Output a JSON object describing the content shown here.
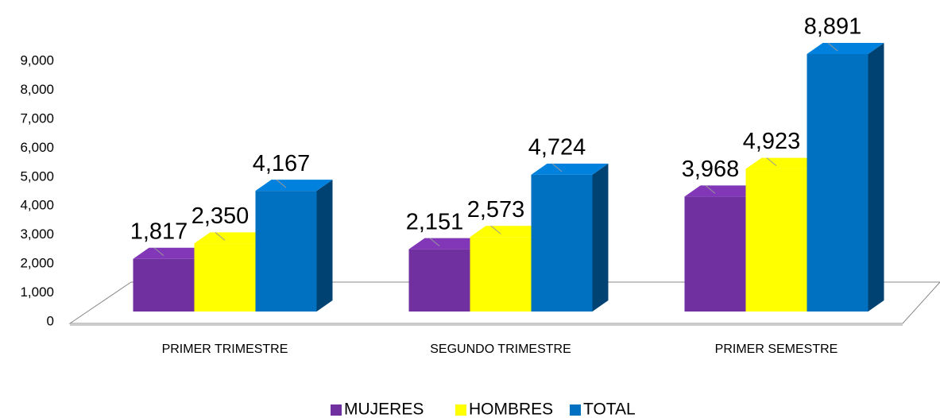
{
  "chart_data": {
    "type": "bar3d",
    "categories": [
      "PRIMER TRIMESTRE",
      "SEGUNDO TRIMESTRE",
      "PRIMER SEMESTRE"
    ],
    "series": [
      {
        "name": "MUJERES",
        "color": "#7030a0",
        "values": [
          1817,
          2151,
          3968
        ],
        "value_labels": [
          "1,817",
          "2,151",
          "3,968"
        ]
      },
      {
        "name": "HOMBRES",
        "color": "#ffff00",
        "values": [
          2350,
          2573,
          4923
        ],
        "value_labels": [
          "2,350",
          "2,573",
          "4,923"
        ]
      },
      {
        "name": "TOTAL",
        "color": "#0070c0",
        "values": [
          4167,
          4724,
          8891
        ],
        "value_labels": [
          "4,167",
          "4,724",
          "8,891"
        ]
      }
    ],
    "ylim": [
      0,
      9000
    ],
    "yticks": [
      0,
      {
        "value": 1000,
        "label": "1,000"
      },
      {
        "value": 2000,
        "label": "2,000"
      },
      {
        "value": 3000,
        "label": "3,000"
      },
      {
        "value": 4000,
        "label": "4,000"
      },
      {
        "value": 5000,
        "label": "5,000"
      },
      {
        "value": 6000,
        "label": "6,000"
      },
      {
        "value": 7000,
        "label": "7,000"
      },
      {
        "value": 8000,
        "label": "8,000"
      },
      {
        "value": 9000,
        "label": "9,000"
      }
    ],
    "legend": "bottom"
  }
}
